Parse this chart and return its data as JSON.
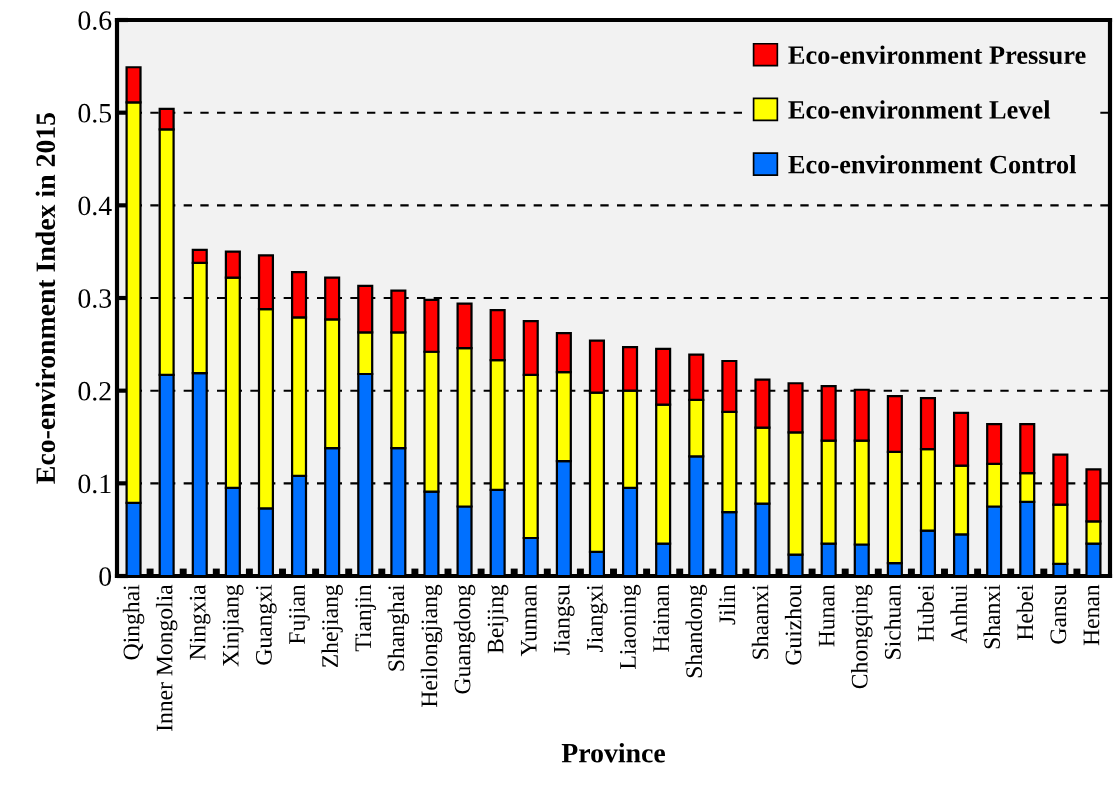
{
  "chart_data": {
    "type": "bar",
    "stacked": true,
    "xlabel": "Province",
    "ylabel": "Eco-environment Index in 2015",
    "categories": [
      "Qinghai",
      "Inner Mongolia",
      "Ningxia",
      "Xinjiang",
      "Guangxi",
      "Fujian",
      "Zhejiang",
      "Tianjin",
      "Shanghai",
      "Heilongjiang",
      "Guangdong",
      "Beijing",
      "Yunnan",
      "Jiangsu",
      "Jiangxi",
      "Liaoning",
      "Hainan",
      "Shandong",
      "Jilin",
      "Shaanxi",
      "Guizhou",
      "Hunan",
      "Chongqing",
      "Sichuan",
      "Hubei",
      "Anhui",
      "Shanxi",
      "Hebei",
      "Gansu",
      "Henan"
    ],
    "series": [
      {
        "name": "Eco-environment Control",
        "color": "#0070ff",
        "values": [
          0.079,
          0.217,
          0.219,
          0.095,
          0.073,
          0.108,
          0.138,
          0.218,
          0.138,
          0.091,
          0.075,
          0.093,
          0.041,
          0.124,
          0.026,
          0.095,
          0.035,
          0.129,
          0.069,
          0.078,
          0.023,
          0.035,
          0.034,
          0.014,
          0.049,
          0.045,
          0.075,
          0.08,
          0.013,
          0.035
        ]
      },
      {
        "name": "Eco-environment Level",
        "color": "#ffff00",
        "values": [
          0.432,
          0.265,
          0.119,
          0.227,
          0.215,
          0.171,
          0.139,
          0.045,
          0.125,
          0.151,
          0.171,
          0.14,
          0.176,
          0.096,
          0.172,
          0.105,
          0.15,
          0.061,
          0.108,
          0.082,
          0.132,
          0.111,
          0.112,
          0.12,
          0.088,
          0.074,
          0.046,
          0.031,
          0.064,
          0.024
        ]
      },
      {
        "name": "Eco-environment Pressure",
        "color": "#ff0000",
        "values": [
          0.038,
          0.022,
          0.014,
          0.028,
          0.058,
          0.049,
          0.045,
          0.05,
          0.045,
          0.056,
          0.048,
          0.054,
          0.058,
          0.042,
          0.056,
          0.047,
          0.06,
          0.049,
          0.055,
          0.052,
          0.053,
          0.059,
          0.055,
          0.06,
          0.055,
          0.057,
          0.043,
          0.053,
          0.054,
          0.056
        ]
      }
    ],
    "ylim": [
      0,
      0.6
    ],
    "yticks": [
      0,
      0.1,
      0.2,
      0.3,
      0.4,
      0.5,
      0.6
    ],
    "grid": "y",
    "legend": "top right"
  }
}
